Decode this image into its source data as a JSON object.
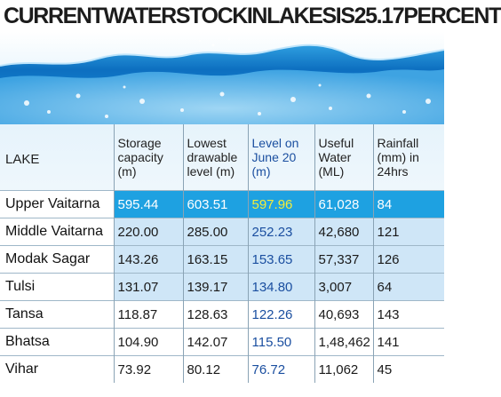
{
  "title": "CURRENTWATERSTOCKINLAKESIS25.17PERCENT",
  "chart_data": {
    "type": "table",
    "columns": [
      "LAKE",
      "Storage capacity (m)",
      "Lowest drawable level (m)",
      "Level on June 20 (m)",
      "Useful Water (ML)",
      "Rainfall (mm) in 24hrs"
    ],
    "rows": [
      {
        "lake": "Upper Vaitarna",
        "storage": "595.44",
        "lowest": "603.51",
        "level": "597.96",
        "useful": "61,028",
        "rainfall": "84"
      },
      {
        "lake": "Middle Vaitarna",
        "storage": "220.00",
        "lowest": "285.00",
        "level": "252.23",
        "useful": "42,680",
        "rainfall": "121"
      },
      {
        "lake": "Modak Sagar",
        "storage": "143.26",
        "lowest": "163.15",
        "level": "153.65",
        "useful": "57,337",
        "rainfall": "126"
      },
      {
        "lake": "Tulsi",
        "storage": "131.07",
        "lowest": "139.17",
        "level": "134.80",
        "useful": "3,007",
        "rainfall": "64"
      },
      {
        "lake": "Tansa",
        "storage": "118.87",
        "lowest": "128.63",
        "level": "122.26",
        "useful": "40,693",
        "rainfall": "143"
      },
      {
        "lake": "Bhatsa",
        "storage": "104.90",
        "lowest": "142.07",
        "level": "115.50",
        "useful": "1,48,462",
        "rainfall": "141"
      },
      {
        "lake": "Vihar",
        "storage": "73.92",
        "lowest": "80.12",
        "level": "76.72",
        "useful": "11,062",
        "rainfall": "45"
      }
    ]
  },
  "colors": {
    "highlight_row": "#1ea1e1",
    "highlight_level_text": "#f4ed3a",
    "level_text": "#1b4fa0",
    "light_row": "#cfe6f7"
  }
}
